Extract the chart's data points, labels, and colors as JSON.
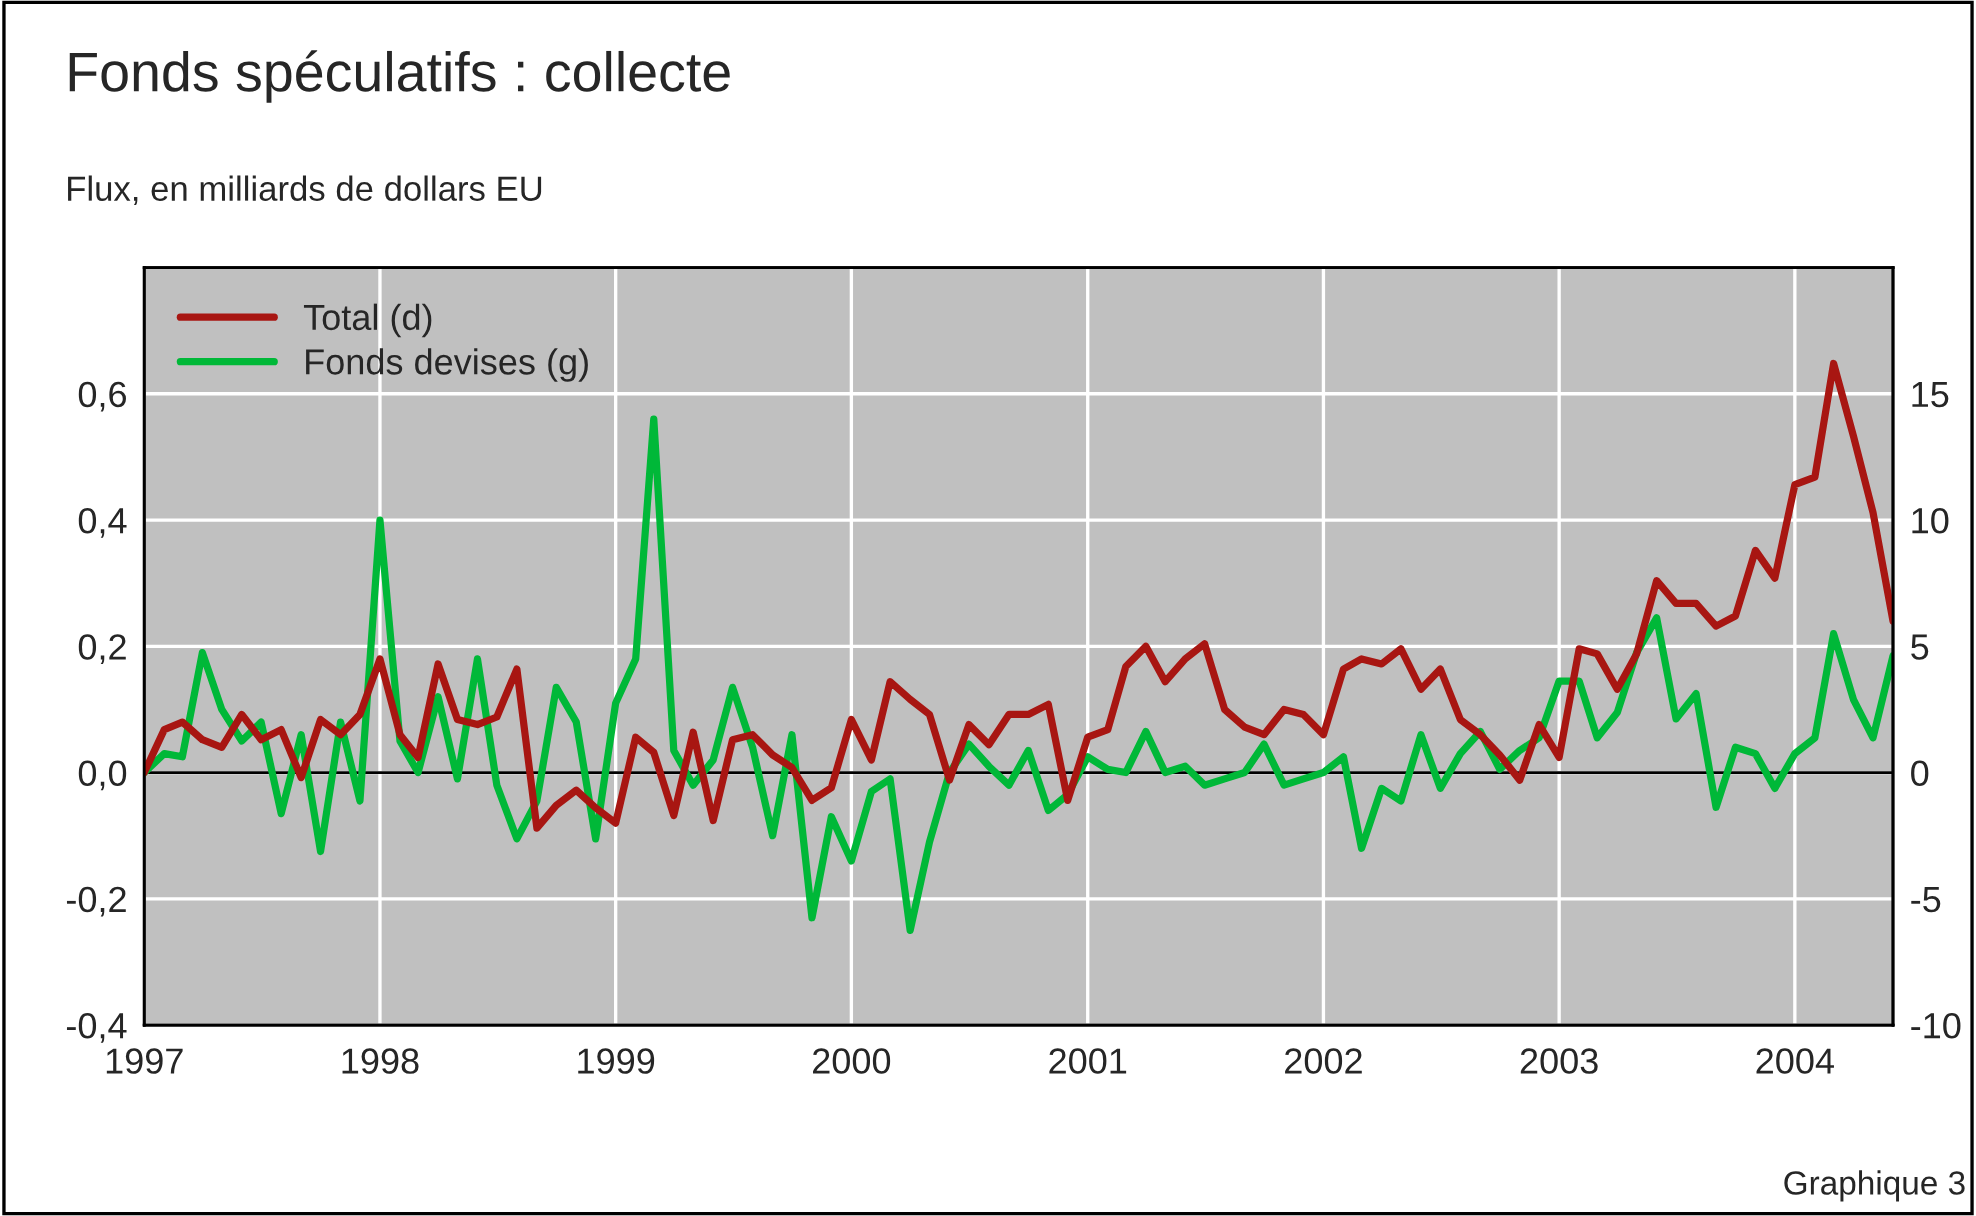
{
  "chart_data": {
    "type": "line",
    "title": "Fonds spéculatifs : collecte",
    "subtitle": "Flux, en milliards de dollars EU",
    "annotations": [
      "Graphique 3"
    ],
    "x": [
      "1997-01",
      "1997-02",
      "1997-03",
      "1997-04",
      "1997-05",
      "1997-06",
      "1997-07",
      "1997-08",
      "1997-09",
      "1997-10",
      "1997-11",
      "1997-12",
      "1998-01",
      "1998-02",
      "1998-03",
      "1998-04",
      "1998-05",
      "1998-06",
      "1998-07",
      "1998-08",
      "1998-09",
      "1998-10",
      "1998-11",
      "1998-12",
      "1999-01",
      "1999-02",
      "1999-03",
      "1999-04",
      "1999-05",
      "1999-06",
      "1999-07",
      "1999-08",
      "1999-09",
      "1999-10",
      "1999-11",
      "1999-12",
      "2000-01",
      "2000-02",
      "2000-03",
      "2000-04",
      "2000-05",
      "2000-06",
      "2000-07",
      "2000-08",
      "2000-09",
      "2000-10",
      "2000-11",
      "2000-12",
      "2001-01",
      "2001-02",
      "2001-03",
      "2001-04",
      "2001-05",
      "2001-06",
      "2001-07",
      "2001-08",
      "2001-09",
      "2001-10",
      "2001-11",
      "2001-12",
      "2002-01",
      "2002-02",
      "2002-03",
      "2002-04",
      "2002-05",
      "2002-06",
      "2002-07",
      "2002-08",
      "2002-09",
      "2002-10",
      "2002-11",
      "2002-12",
      "2003-01",
      "2003-02",
      "2003-03",
      "2003-04",
      "2003-05",
      "2003-06",
      "2003-07",
      "2003-08",
      "2003-09",
      "2003-10",
      "2003-11",
      "2003-12",
      "2004-01",
      "2004-02",
      "2004-03",
      "2004-04",
      "2004-05",
      "2004-06"
    ],
    "series": [
      {
        "name": "Total (d)",
        "color": "#a81612",
        "axis": "y2",
        "values": [
          0,
          1.7,
          2.0,
          1.3,
          1.0,
          2.3,
          1.3,
          1.7,
          -0.2,
          2.1,
          1.5,
          2.3,
          4.5,
          1.5,
          0.6,
          4.3,
          2.1,
          1.9,
          2.2,
          4.1,
          -2.2,
          -1.3,
          -0.7,
          -1.4,
          -2.0,
          1.4,
          0.8,
          -1.7,
          1.6,
          -1.9,
          1.3,
          1.5,
          0.7,
          0.2,
          -1.1,
          -0.6,
          2.1,
          0.5,
          3.6,
          2.9,
          2.3,
          -0.3,
          1.9,
          1.1,
          2.3,
          2.3,
          2.7,
          -1.1,
          1.4,
          1.7,
          4.2,
          5.0,
          3.6,
          4.5,
          5.1,
          2.5,
          1.8,
          1.5,
          2.5,
          2.3,
          1.5,
          4.1,
          4.5,
          4.3,
          4.9,
          3.3,
          4.1,
          2.1,
          1.5,
          0.7,
          -0.3,
          1.9,
          0.6,
          4.9,
          4.7,
          3.3,
          4.7,
          7.6,
          6.7,
          6.7,
          5.8,
          6.2,
          8.8,
          7.7,
          11.4,
          11.7,
          16.2,
          13.3,
          10.3,
          6.0
        ]
      },
      {
        "name": "Fonds devises (g)",
        "color": "#00b838",
        "values": [
          0,
          0.03,
          0.025,
          0.19,
          0.1,
          0.05,
          0.08,
          -0.065,
          0.06,
          -0.125,
          0.08,
          -0.045,
          0.4,
          0.05,
          0,
          0.12,
          -0.01,
          0.18,
          -0.02,
          -0.105,
          -0.045,
          0.135,
          0.08,
          -0.105,
          0.11,
          0.18,
          0.56,
          0.035,
          -0.02,
          0.02,
          0.135,
          0.04,
          -0.1,
          0.06,
          -0.23,
          -0.07,
          -0.14,
          -0.03,
          -0.01,
          -0.25,
          -0.11,
          0,
          0.045,
          0.01,
          -0.02,
          0.035,
          -0.06,
          -0.035,
          0.025,
          0.005,
          0,
          0.065,
          0,
          0.01,
          -0.02,
          -0.01,
          0,
          0.045,
          -0.02,
          -0.01,
          0,
          0.025,
          -0.12,
          -0.025,
          -0.045,
          0.06,
          -0.025,
          0.03,
          0.065,
          0.005,
          0.035,
          0.055,
          0.145,
          0.145,
          0.055,
          0.095,
          0.19,
          0.245,
          0.085,
          0.125,
          -0.055,
          0.04,
          0.03,
          -0.025,
          0.03,
          0.055,
          0.22,
          0.115,
          0.055,
          0.185
        ]
      }
    ],
    "xlim": [
      "1997-01",
      "2004-06"
    ],
    "xticks": [
      {
        "value": "1997-01",
        "label": "1997"
      },
      {
        "value": "1998-01",
        "label": "1998"
      },
      {
        "value": "1999-01",
        "label": "1999"
      },
      {
        "value": "2000-01",
        "label": "2000"
      },
      {
        "value": "2001-01",
        "label": "2001"
      },
      {
        "value": "2002-01",
        "label": "2002"
      },
      {
        "value": "2003-01",
        "label": "2003"
      },
      {
        "value": "2004-01",
        "label": "2004"
      }
    ],
    "ylim": [
      -0.4,
      0.8
    ],
    "yticks": [
      {
        "value": -0.4,
        "label": "-0,4"
      },
      {
        "value": -0.2,
        "label": "-0,2"
      },
      {
        "value": 0,
        "label": "0,0"
      },
      {
        "value": 0.2,
        "label": "0,2"
      },
      {
        "value": 0.4,
        "label": "0,4"
      },
      {
        "value": 0.6,
        "label": "0,6"
      }
    ],
    "y2lim": [
      -10,
      20
    ],
    "y2ticks": [
      -10,
      -5,
      0,
      5,
      10,
      15
    ],
    "ref_lines": [
      {
        "axis": "y",
        "value": 0,
        "color": "#000000"
      }
    ],
    "grid": true,
    "legend": "top left",
    "line_style": "solid"
  }
}
